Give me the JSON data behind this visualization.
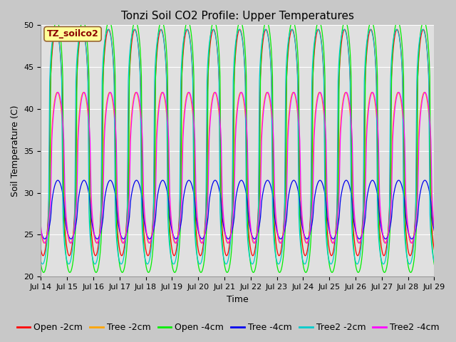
{
  "title": "Tonzi Soil CO2 Profile: Upper Temperatures",
  "xlabel": "Time",
  "ylabel": "Soil Temperature (C)",
  "ylim": [
    20,
    50
  ],
  "xlim_days": [
    14,
    29
  ],
  "series": [
    {
      "label": "Open -2cm",
      "color": "#FF0000",
      "amp": 13.5,
      "mean": 36.0,
      "phase_hr": 14.0,
      "sharpness": 2.5
    },
    {
      "label": "Tree -2cm",
      "color": "#FFA500",
      "amp": 9.0,
      "mean": 33.0,
      "phase_hr": 15.0,
      "sharpness": 2.0
    },
    {
      "label": "Open -4cm",
      "color": "#00EE00",
      "amp": 15.0,
      "mean": 35.5,
      "phase_hr": 14.5,
      "sharpness": 3.5
    },
    {
      "label": "Tree -4cm",
      "color": "#0000EE",
      "amp": 3.5,
      "mean": 28.0,
      "phase_hr": 15.5,
      "sharpness": 1.5
    },
    {
      "label": "Tree2 -2cm",
      "color": "#00CCCC",
      "amp": 14.0,
      "mean": 35.5,
      "phase_hr": 13.5,
      "sharpness": 3.5
    },
    {
      "label": "Tree2 -4cm",
      "color": "#FF00FF",
      "amp": 9.0,
      "mean": 33.0,
      "phase_hr": 15.5,
      "sharpness": 2.0
    }
  ],
  "period_days": 1.0,
  "background_color": "#C8C8C8",
  "plot_bg_color": "#E0E0E0",
  "grid_color": "#FFFFFF",
  "annotation_text": "TZ_soilco2",
  "annotation_color": "#8B0000",
  "annotation_bg": "#FFFF99",
  "title_fontsize": 11,
  "axis_label_fontsize": 9,
  "tick_fontsize": 8,
  "legend_fontsize": 9
}
